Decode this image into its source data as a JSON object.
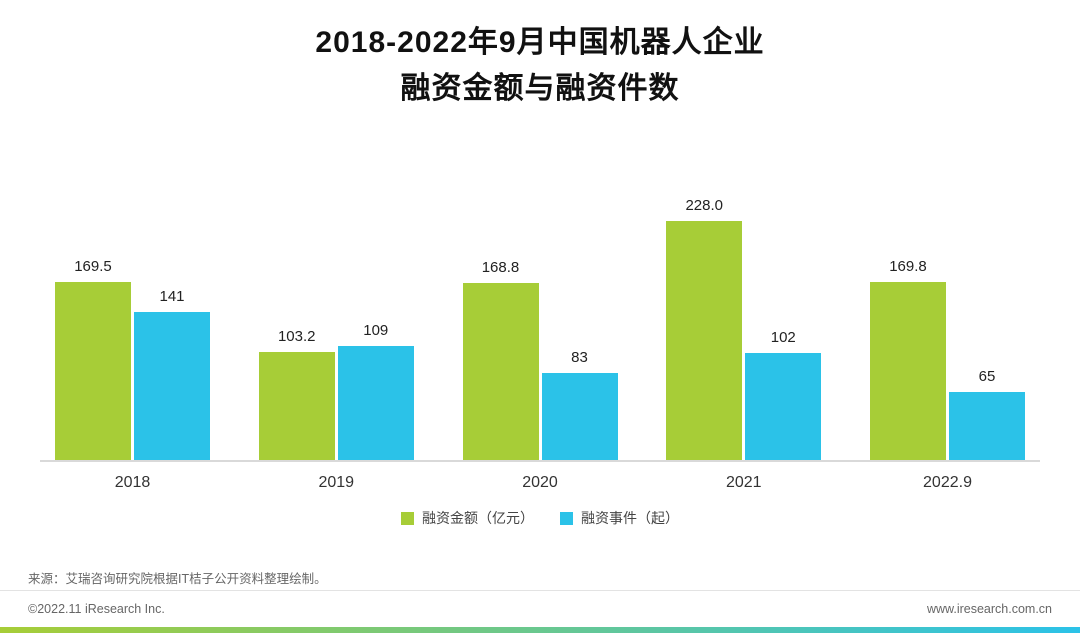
{
  "page": {
    "title_line1": "2018-2022年9月中国机器人企业",
    "title_line2": "融资金额与融资件数",
    "source": "来源：艾瑞咨询研究院根据IT桔子公开资料整理绘制。",
    "footer_left": "©2022.11 iResearch Inc.",
    "footer_right": "www.iresearch.com.cn"
  },
  "chart_data": {
    "type": "bar",
    "title": "2018-2022年9月中国机器人企业融资金额与融资件数",
    "categories": [
      "2018",
      "2019",
      "2020",
      "2021",
      "2022.9"
    ],
    "series": [
      {
        "name": "融资金额（亿元）",
        "color": "#a7cd37",
        "values": [
          169.5,
          103.2,
          168.8,
          228.0,
          169.8
        ],
        "value_labels": [
          "169.5",
          "103.2",
          "168.8",
          "228.0",
          "169.8"
        ]
      },
      {
        "name": "融资事件（起）",
        "color": "#2bc2e8",
        "values": [
          141,
          109,
          83,
          102,
          65
        ],
        "value_labels": [
          "141",
          "109",
          "83",
          "102",
          "65"
        ]
      }
    ],
    "xlabel": "",
    "ylabel": "",
    "ylim": [
      0,
      240
    ],
    "grid": false,
    "legend_position": "bottom",
    "brand_gradient": [
      "#a7cd37",
      "#2bc2e8"
    ]
  }
}
